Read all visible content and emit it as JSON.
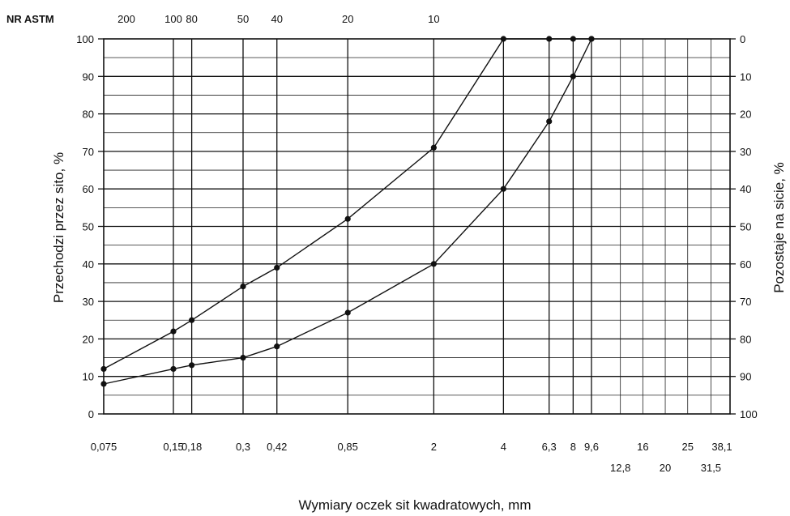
{
  "chart_data": {
    "type": "line",
    "x_scale": "log",
    "astm_label": "NR ASTM",
    "ylabel_left": "Przechodzi przez sito, %",
    "ylabel_right": "Pozostaje na sicie, %",
    "xlabel": "Wymiary oczek sit kwadratowych, mm",
    "ylim": [
      0,
      100
    ],
    "yticks": [
      0,
      10,
      20,
      30,
      40,
      50,
      60,
      70,
      80,
      90,
      100
    ],
    "yticks_right": [
      100,
      90,
      80,
      70,
      60,
      50,
      40,
      30,
      20,
      10,
      0
    ],
    "xlim": [
      0.075,
      38.1
    ],
    "sieves": [
      {
        "value": 0.075,
        "label": "0,075",
        "row": 1
      },
      {
        "value": 0.15,
        "label": "0,15",
        "row": 1
      },
      {
        "value": 0.18,
        "label": "0,18",
        "row": 1
      },
      {
        "value": 0.3,
        "label": "0,3",
        "row": 1
      },
      {
        "value": 0.42,
        "label": "0,42",
        "row": 1
      },
      {
        "value": 0.85,
        "label": "0,85",
        "row": 1
      },
      {
        "value": 2,
        "label": "2",
        "row": 1
      },
      {
        "value": 4,
        "label": "4",
        "row": 1
      },
      {
        "value": 6.3,
        "label": "6,3",
        "row": 1
      },
      {
        "value": 8,
        "label": "8",
        "row": 1
      },
      {
        "value": 9.6,
        "label": "9,6",
        "row": 1
      },
      {
        "value": 12.8,
        "label": "12,8",
        "row": 2
      },
      {
        "value": 16,
        "label": "16",
        "row": 1
      },
      {
        "value": 20,
        "label": "20",
        "row": 2
      },
      {
        "value": 25,
        "label": "25",
        "row": 1
      },
      {
        "value": 31.5,
        "label": "31,5",
        "row": 2
      },
      {
        "value": 38.1,
        "label": "38,1",
        "row": 1
      }
    ],
    "astm_numbers": [
      {
        "value": 0.075,
        "label": "200"
      },
      {
        "value": 0.15,
        "label": "100"
      },
      {
        "value": 0.18,
        "label": "80"
      },
      {
        "value": 0.3,
        "label": "50"
      },
      {
        "value": 0.42,
        "label": "40"
      },
      {
        "value": 0.85,
        "label": "20"
      },
      {
        "value": 2,
        "label": "10"
      }
    ],
    "major_lines_x": [
      0.15,
      0.18,
      0.3,
      0.42,
      0.85,
      2,
      4,
      6.3,
      8,
      9.6
    ],
    "series": [
      {
        "x": [
          0.075,
          0.15,
          0.18,
          0.3,
          0.42,
          0.85,
          2,
          4,
          6.3,
          8,
          9.6
        ],
        "y": [
          12,
          22,
          25,
          34,
          39,
          52,
          71,
          100,
          100,
          100,
          100
        ]
      },
      {
        "x": [
          0.075,
          0.15,
          0.18,
          0.3,
          0.42,
          0.85,
          2,
          4,
          6.3,
          8,
          9.6
        ],
        "y": [
          8,
          12,
          13,
          15,
          18,
          27,
          40,
          60,
          78,
          90,
          100
        ]
      }
    ]
  }
}
